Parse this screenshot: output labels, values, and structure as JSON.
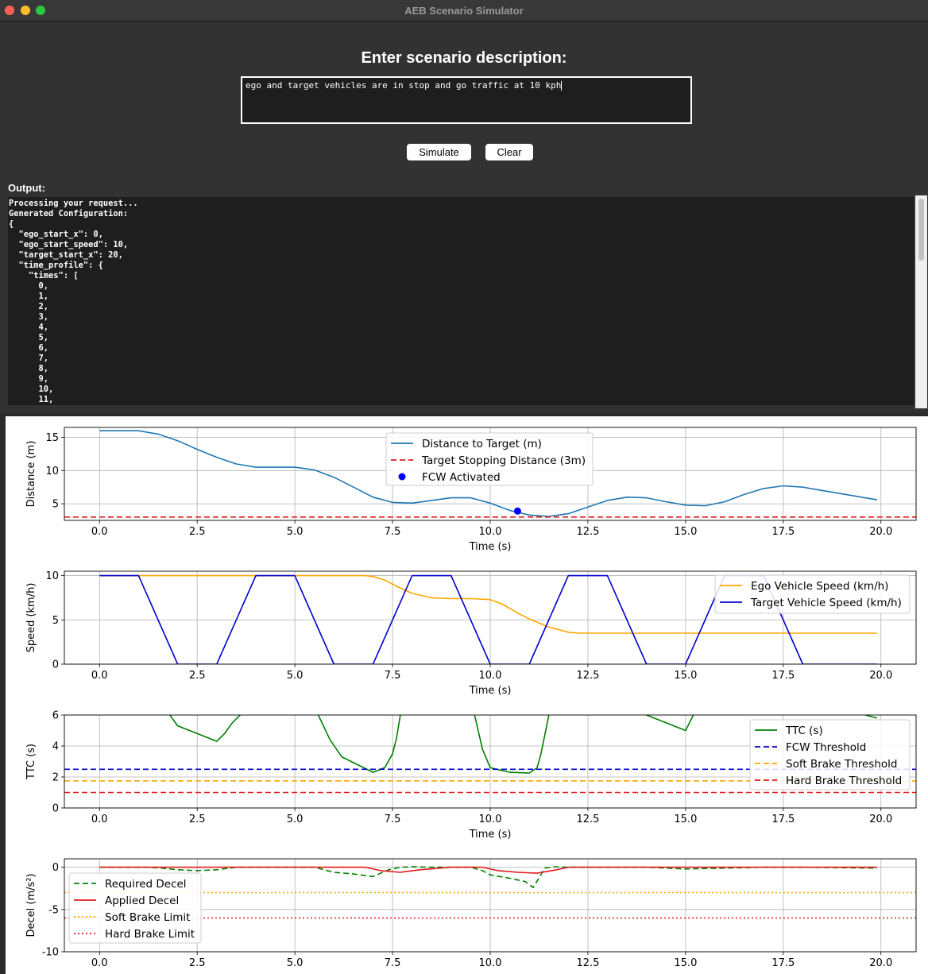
{
  "window": {
    "title": "AEB Scenario Simulator"
  },
  "prompt": {
    "label": "Enter scenario description:",
    "value": "ego and target vehicles are in stop and go traffic at 10 kph"
  },
  "buttons": {
    "simulate": "Simulate",
    "clear": "Clear"
  },
  "output": {
    "label": "Output:",
    "lines": [
      "Processing your request...",
      "Generated Configuration:",
      "{",
      "  \"ego_start_x\": 0,",
      "  \"ego_start_speed\": 10,",
      "  \"target_start_x\": 20,",
      "  \"time_profile\": {",
      "    \"times\": [",
      "      0,",
      "      1,",
      "      2,",
      "      3,",
      "      4,",
      "      5,",
      "      6,",
      "      7,",
      "      8,",
      "      9,",
      "      10,",
      "      11,"
    ]
  },
  "chart_data": [
    {
      "type": "line",
      "xlabel": "Time (s)",
      "ylabel": "Distance (m)",
      "xlim": [
        -0.9,
        20.9
      ],
      "ylim": [
        2.5,
        16.5
      ],
      "xticks": [
        "0.0",
        "2.5",
        "5.0",
        "7.5",
        "10.0",
        "12.5",
        "15.0",
        "17.5",
        "20.0"
      ],
      "yticks": [
        "5",
        "10",
        "15"
      ],
      "grid": true,
      "legend": "top-center",
      "series": [
        {
          "name": "Distance to Target (m)",
          "color": "#1f77b4",
          "style": "solid",
          "x": [
            0,
            1,
            1.5,
            2,
            2.5,
            3,
            3.5,
            4,
            5,
            5.5,
            6,
            6.5,
            7,
            7.5,
            8,
            8.5,
            9,
            9.5,
            10,
            10.5,
            11,
            11.5,
            12,
            12.5,
            13,
            13.5,
            14,
            14.5,
            15,
            15.5,
            16,
            16.5,
            17,
            17.5,
            18,
            18.5,
            19,
            19.5,
            19.9
          ],
          "y": [
            16,
            16,
            15.5,
            14.5,
            13.2,
            12,
            11,
            10.5,
            10.5,
            10.1,
            9,
            7.5,
            6,
            5.2,
            5.1,
            5.5,
            5.9,
            5.9,
            5.1,
            4,
            3.3,
            3.1,
            3.5,
            4.5,
            5.5,
            6,
            5.9,
            5.3,
            4.8,
            4.7,
            5.3,
            6.4,
            7.3,
            7.7,
            7.5,
            7,
            6.5,
            6,
            5.6
          ]
        },
        {
          "name": "Target Stopping Distance (3m)",
          "color": "#e31a1c",
          "style": "dashed",
          "x": [
            -0.9,
            20.9
          ],
          "y": [
            3,
            3
          ]
        },
        {
          "name": "FCW Activated",
          "color": "#0000ff",
          "style": "marker",
          "x": [
            10.7
          ],
          "y": [
            3.9
          ]
        }
      ]
    },
    {
      "type": "line",
      "xlabel": "Time (s)",
      "ylabel": "Speed (km/h)",
      "xlim": [
        -0.9,
        20.9
      ],
      "ylim": [
        0,
        10.5
      ],
      "xticks": [
        "0.0",
        "2.5",
        "5.0",
        "7.5",
        "10.0",
        "12.5",
        "15.0",
        "17.5",
        "20.0"
      ],
      "yticks": [
        "0",
        "5",
        "10"
      ],
      "grid": true,
      "legend": "top-right",
      "series": [
        {
          "name": "Ego Vehicle Speed (km/h)",
          "color": "#ffa500",
          "style": "solid",
          "x": [
            0,
            6.8,
            7,
            7.3,
            7.6,
            8,
            8.5,
            9,
            9.5,
            10,
            10.3,
            10.7,
            11,
            11.5,
            12,
            12.3,
            19.9
          ],
          "y": [
            10,
            10,
            9.9,
            9.5,
            8.8,
            8,
            7.5,
            7.4,
            7.4,
            7.3,
            6.8,
            5.8,
            5.1,
            4.2,
            3.6,
            3.5,
            3.5
          ]
        },
        {
          "name": "Target Vehicle Speed (km/h)",
          "color": "#0000cd",
          "style": "solid",
          "x": [
            0,
            1,
            2,
            3,
            4,
            5,
            6,
            7,
            8,
            9,
            10,
            11,
            12,
            13,
            14,
            15,
            16,
            17,
            18,
            19,
            19.9
          ],
          "y": [
            10,
            10,
            0,
            0,
            10,
            10,
            0,
            0,
            10,
            10,
            0,
            0,
            10,
            10,
            0,
            0,
            10,
            10,
            0,
            0,
            0
          ]
        }
      ]
    },
    {
      "type": "line",
      "xlabel": "Time (s)",
      "ylabel": "TTC (s)",
      "xlim": [
        -0.9,
        20.9
      ],
      "ylim": [
        0,
        6
      ],
      "xticks": [
        "0.0",
        "2.5",
        "5.0",
        "7.5",
        "10.0",
        "12.5",
        "15.0",
        "17.5",
        "20.0"
      ],
      "yticks": [
        "0",
        "2",
        "4",
        "6"
      ],
      "grid": true,
      "legend": "right",
      "series": [
        {
          "name": "TTC (s)",
          "color": "#008000",
          "style": "solid",
          "segments": [
            {
              "x": [
                1.8,
                2,
                3,
                3.2,
                3.4,
                3.6
              ],
              "y": [
                6,
                5.3,
                4.3,
                4.8,
                5.5,
                6
              ]
            },
            {
              "x": [
                5.6,
                5.9,
                6.2,
                7,
                7.3,
                7.5,
                7.6,
                7.7
              ],
              "y": [
                6,
                4.4,
                3.3,
                2.3,
                2.6,
                3.5,
                4.5,
                6
              ]
            },
            {
              "x": [
                9.6,
                9.8,
                10,
                10.5,
                11,
                11.2,
                11.3,
                11.5
              ],
              "y": [
                6,
                3.8,
                2.6,
                2.3,
                2.25,
                2.6,
                3.5,
                6
              ]
            },
            {
              "x": [
                14,
                15,
                15.2
              ],
              "y": [
                6,
                5,
                6
              ]
            },
            {
              "x": [
                19.6,
                19.9
              ],
              "y": [
                6,
                5.8
              ]
            }
          ]
        },
        {
          "name": "FCW Threshold",
          "color": "#0000cd",
          "style": "dashed",
          "x": [
            -0.9,
            20.9
          ],
          "y": [
            2.5,
            2.5
          ]
        },
        {
          "name": "Soft Brake Threshold",
          "color": "#ffa500",
          "style": "dashed",
          "x": [
            -0.9,
            20.9
          ],
          "y": [
            1.75,
            1.75
          ]
        },
        {
          "name": "Hard Brake Threshold",
          "color": "#e31a1c",
          "style": "dashed",
          "x": [
            -0.9,
            20.9
          ],
          "y": [
            1,
            1
          ]
        }
      ]
    },
    {
      "type": "line",
      "xlabel": "",
      "ylabel": "Decel (m/s²)",
      "xlim": [
        -0.9,
        20.9
      ],
      "ylim": [
        -10,
        1
      ],
      "xticks": [
        "0.0",
        "2.5",
        "5.0",
        "7.5",
        "10.0",
        "12.5",
        "15.0",
        "17.5",
        "20.0"
      ],
      "yticks": [
        "-10",
        "-5",
        "0"
      ],
      "grid": true,
      "legend": "left",
      "series": [
        {
          "name": "Required Decel",
          "color": "#008000",
          "style": "dashed",
          "x": [
            0,
            1.2,
            1.6,
            2,
            2.5,
            3,
            3.5,
            4,
            5.5,
            6,
            6.5,
            7,
            7.4,
            7.7,
            8,
            8.5,
            9.5,
            9.8,
            10,
            10.5,
            10.9,
            11.1,
            11.4,
            11.6,
            12,
            14,
            15,
            17,
            18,
            19.9
          ],
          "y": [
            0,
            0,
            -0.1,
            -0.3,
            -0.4,
            -0.3,
            0,
            0,
            0,
            -0.6,
            -0.8,
            -1.1,
            -0.3,
            0,
            0.05,
            0,
            0,
            -0.4,
            -0.9,
            -1.3,
            -1.7,
            -2.4,
            -0.1,
            0.05,
            0,
            0,
            -0.2,
            0,
            0,
            -0.1
          ]
        },
        {
          "name": "Applied Decel",
          "color": "#e31a1c",
          "style": "solid",
          "x": [
            0,
            6.8,
            7.2,
            7.7,
            8.2,
            9,
            9.8,
            10.2,
            10.7,
            11.2,
            11.7,
            12,
            19.9
          ],
          "y": [
            0,
            0,
            -0.4,
            -0.6,
            -0.3,
            0,
            0,
            -0.4,
            -0.6,
            -0.7,
            -0.3,
            0,
            0
          ]
        },
        {
          "name": "Soft Brake Limit",
          "color": "#ffa500",
          "style": "dotted",
          "x": [
            -0.9,
            20.9
          ],
          "y": [
            -3,
            -3
          ]
        },
        {
          "name": "Hard Brake Limit",
          "color": "#e31a1c",
          "style": "dotted",
          "x": [
            -0.9,
            20.9
          ],
          "y": [
            -6,
            -6
          ]
        }
      ]
    }
  ]
}
